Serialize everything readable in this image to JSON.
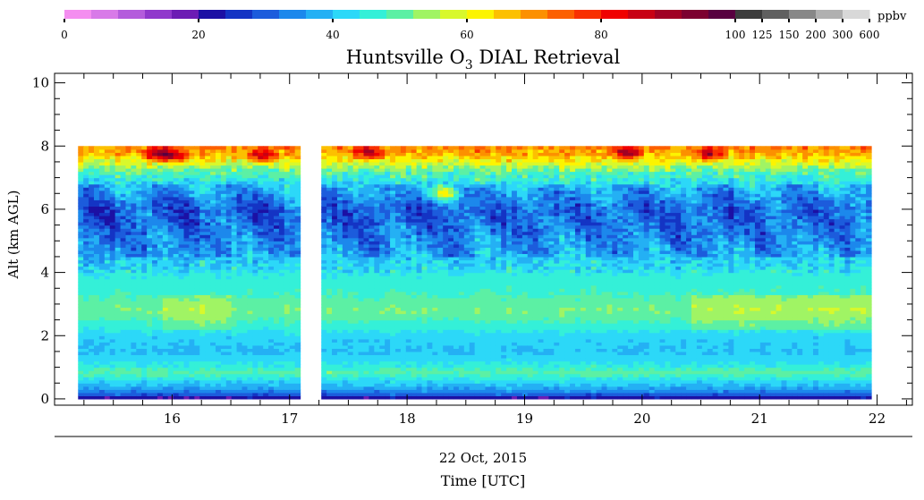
{
  "chart_data": {
    "type": "heatmap",
    "title_main": "Huntsville O",
    "title_sub": "3",
    "title_rest": " DIAL Retrieval",
    "ylabel": "Alt (km AGL)",
    "date_label": "22 Oct, 2015",
    "xlabel": "Time [UTC]",
    "colorbar_unit": "ppbv",
    "colorbar_ticks": [
      "0",
      "20",
      "40",
      "60",
      "80",
      "100",
      "125",
      "150",
      "200",
      "300",
      "600"
    ],
    "colorbar_colors": [
      "#f48ef0",
      "#d87ae8",
      "#b45cdc",
      "#9038cc",
      "#6c1cb4",
      "#1c10a4",
      "#1434c4",
      "#1c5cdc",
      "#1c88ec",
      "#24b0f4",
      "#2cd8f8",
      "#34f0d8",
      "#5cf0a4",
      "#a0f464",
      "#d8f82c",
      "#fcf400",
      "#fcc000",
      "#fc9000",
      "#fc6000",
      "#f83000",
      "#f00000",
      "#c80014",
      "#a00024",
      "#7c0030",
      "#580040",
      "#3c3c3c",
      "#606060",
      "#888888",
      "#b0b0b0",
      "#d8d8d8"
    ],
    "x_ticks": [
      "16",
      "17",
      "18",
      "19",
      "20",
      "21",
      "22"
    ],
    "y_ticks": [
      "0",
      "2",
      "4",
      "6",
      "8",
      "10"
    ],
    "xlim": [
      15.0,
      22.3
    ],
    "ylim": [
      -0.2,
      10.3
    ],
    "data_gap": [
      17.1,
      17.25
    ],
    "data_extent": {
      "x": [
        15.2,
        21.95
      ],
      "y": [
        0,
        8
      ]
    },
    "profile": [
      {
        "alt": 0.05,
        "ppbv": 22
      },
      {
        "alt": 0.15,
        "ppbv": 30
      },
      {
        "alt": 0.3,
        "ppbv": 36
      },
      {
        "alt": 0.55,
        "ppbv": 42
      },
      {
        "alt": 0.85,
        "ppbv": 50
      },
      {
        "alt": 1.1,
        "ppbv": 44
      },
      {
        "alt": 1.5,
        "ppbv": 40
      },
      {
        "alt": 1.9,
        "ppbv": 41
      },
      {
        "alt": 2.3,
        "ppbv": 46
      },
      {
        "alt": 2.8,
        "ppbv": 52
      },
      {
        "alt": 3.3,
        "ppbv": 48
      },
      {
        "alt": 3.9,
        "ppbv": 45
      },
      {
        "alt": 4.6,
        "ppbv": 40
      },
      {
        "alt": 5.3,
        "ppbv": 36
      },
      {
        "alt": 6.0,
        "ppbv": 34
      },
      {
        "alt": 6.6,
        "ppbv": 40
      },
      {
        "alt": 7.2,
        "ppbv": 50
      },
      {
        "alt": 7.7,
        "ppbv": 66
      },
      {
        "alt": 8.0,
        "ppbv": 72
      }
    ]
  }
}
